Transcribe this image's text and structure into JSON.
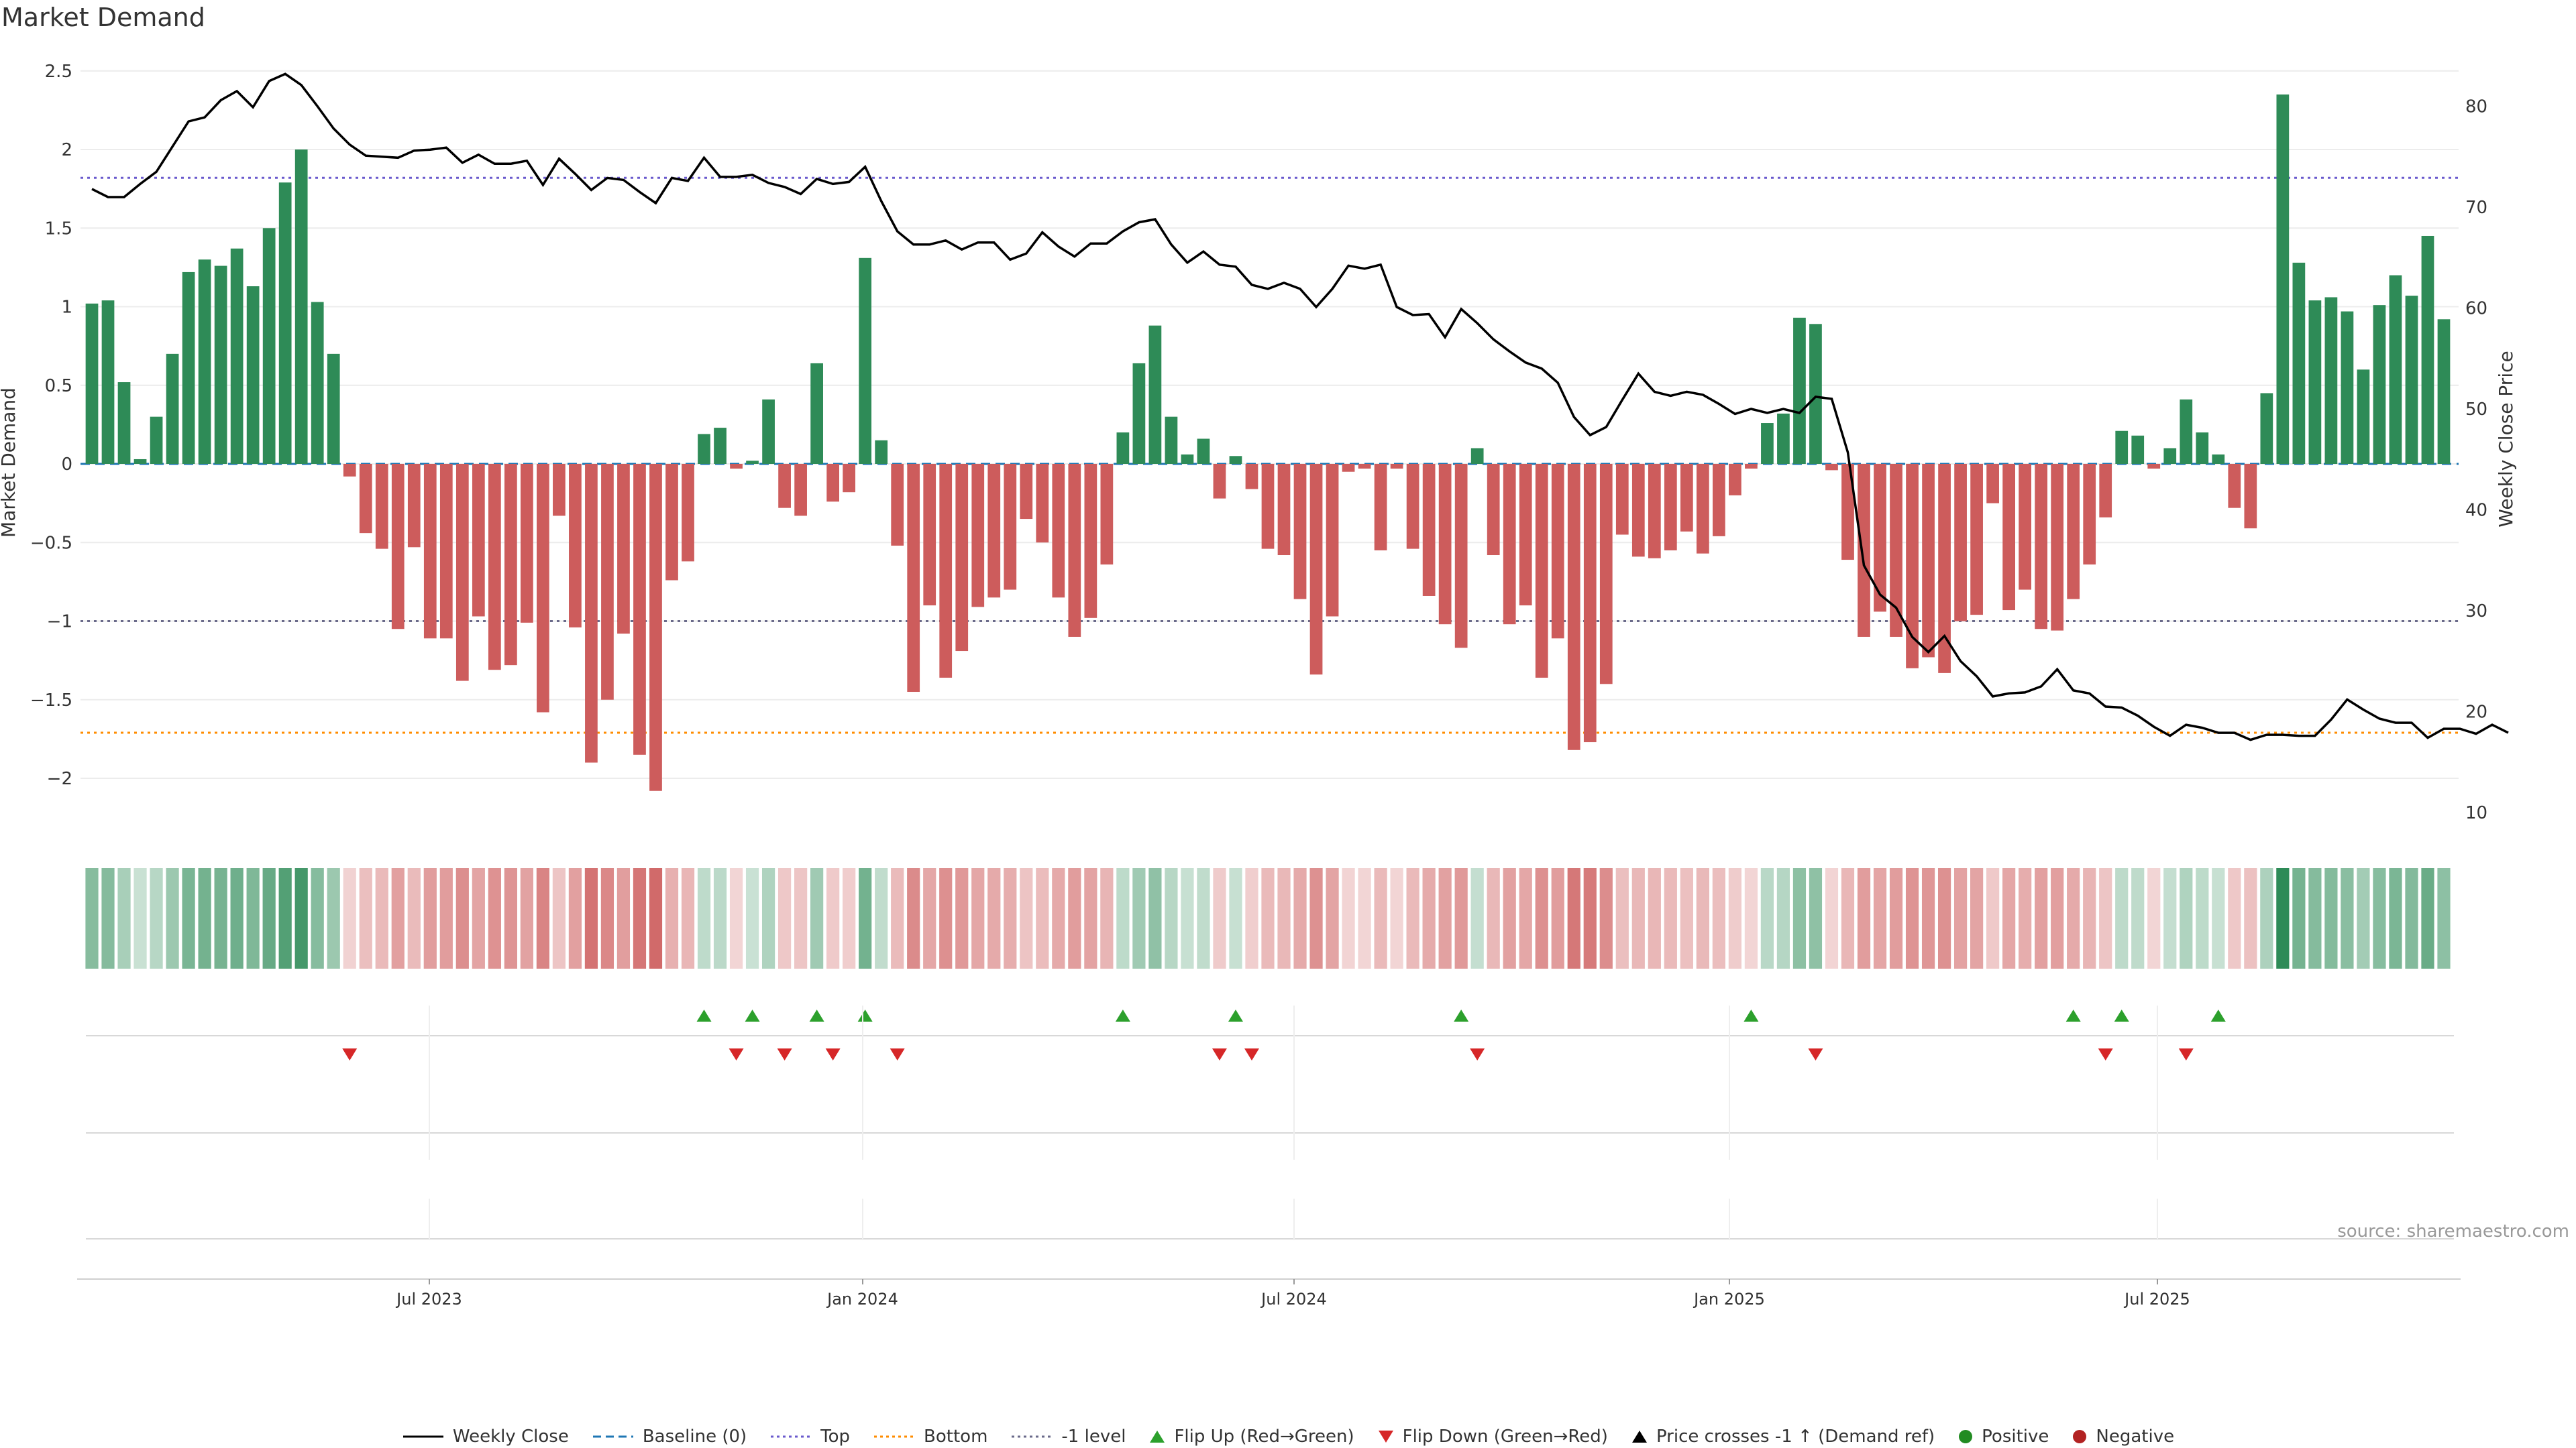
{
  "title": "Market Demand",
  "source": "source: sharemaestro.com",
  "colors": {
    "positive_bar": "#2e8b57",
    "negative_bar": "#cd5c5c",
    "price_line": "#000000",
    "top_line": "#6a5acd",
    "bottom_line": "#ff8c00",
    "minus1_line": "#6a6a8a",
    "baseline": "#1f77b4",
    "flip_up": "#2ca02c",
    "flip_down": "#d62728"
  },
  "legend": [
    {
      "label": "Weekly Close",
      "icon": "solid-line"
    },
    {
      "label": "Baseline (0)",
      "icon": "dashed-line"
    },
    {
      "label": "Top",
      "icon": "dotted-line"
    },
    {
      "label": "Bottom",
      "icon": "dotted-line"
    },
    {
      "label": "-1 level",
      "icon": "dotted-line"
    },
    {
      "label": "Flip Up (Red→Green)",
      "icon": "triangle-up-icon"
    },
    {
      "label": "Flip Down (Green→Red)",
      "icon": "triangle-down-icon"
    },
    {
      "label": "Price crosses -1 ↑ (Demand ref)",
      "icon": "triangle-up-icon"
    },
    {
      "label": "Positive",
      "icon": "circle-icon"
    },
    {
      "label": "Negative",
      "icon": "circle-icon"
    }
  ],
  "chart_data": {
    "type": "bar",
    "ylabel": "Market Demand",
    "y2label": "Weekly Close Price",
    "ylim": [
      -2.3,
      2.5
    ],
    "y2lim": [
      8.5,
      83.5
    ],
    "yticks": [
      "2.5",
      "2",
      "1.5",
      "1",
      "0.5",
      "0",
      "−0.5",
      "−1",
      "−1.5",
      "−2"
    ],
    "y2ticks": [
      "80",
      "70",
      "60",
      "50",
      "40",
      "30",
      "20",
      "10"
    ],
    "xticks": [
      "Jul 2023",
      "Jan 2024",
      "Jul 2024",
      "Jan 2025",
      "Jul 2025"
    ],
    "reference_lines": {
      "top": 1.82,
      "bottom": -1.71,
      "minus1": -1.0,
      "baseline": 0
    },
    "demand": [
      1.02,
      1.04,
      0.52,
      0.03,
      0.3,
      0.7,
      1.22,
      1.3,
      1.26,
      1.37,
      1.13,
      1.5,
      1.79,
      2.0,
      1.03,
      0.7,
      -0.08,
      -0.44,
      -0.54,
      -1.05,
      -0.53,
      -1.11,
      -1.11,
      -1.38,
      -0.97,
      -1.31,
      -1.28,
      -1.01,
      -1.58,
      -0.33,
      -1.04,
      -1.9,
      -1.5,
      -1.08,
      -1.85,
      -2.08,
      -0.74,
      -0.62,
      0.19,
      0.23,
      -0.03,
      0.02,
      0.41,
      -0.28,
      -0.33,
      0.64,
      -0.24,
      -0.18,
      1.31,
      0.15,
      -0.52,
      -1.45,
      -0.9,
      -1.36,
      -1.19,
      -0.91,
      -0.85,
      -0.8,
      -0.35,
      -0.5,
      -0.85,
      -1.1,
      -0.98,
      -0.64,
      0.2,
      0.64,
      0.88,
      0.3,
      0.06,
      0.16,
      -0.22,
      0.05,
      -0.16,
      -0.54,
      -0.58,
      -0.86,
      -1.34,
      -0.97,
      -0.05,
      -0.03,
      -0.55,
      -0.03,
      -0.54,
      -0.84,
      -1.02,
      -1.17,
      0.1,
      -0.58,
      -1.02,
      -0.9,
      -1.36,
      -1.11,
      -1.82,
      -1.77,
      -1.4,
      -0.45,
      -0.59,
      -0.6,
      -0.55,
      -0.43,
      -0.57,
      -0.46,
      -0.2,
      -0.03,
      0.26,
      0.32,
      0.93,
      0.89,
      -0.04,
      -0.61,
      -1.1,
      -0.94,
      -1.1,
      -1.3,
      -1.23,
      -1.33,
      -1.0,
      -0.96,
      -0.25,
      -0.93,
      -0.8,
      -1.05,
      -1.06,
      -0.86,
      -0.64,
      -0.34,
      0.21,
      0.18,
      -0.03,
      0.1,
      0.41,
      0.2,
      0.06,
      -0.28,
      -0.41,
      0.45,
      2.35,
      1.28,
      1.04,
      1.06,
      0.97,
      0.6,
      1.01,
      1.2,
      1.07,
      1.45,
      0.92
    ],
    "weekly_close": [
      71.8,
      71.0,
      71.0,
      72.3,
      73.5,
      76.0,
      78.5,
      78.9,
      80.6,
      81.5,
      79.9,
      82.5,
      83.2,
      82.1,
      80.0,
      77.8,
      76.2,
      75.1,
      75.0,
      74.9,
      75.6,
      75.7,
      75.9,
      74.4,
      75.2,
      74.3,
      74.3,
      74.6,
      72.2,
      74.8,
      73.3,
      71.7,
      72.9,
      72.7,
      71.5,
      70.4,
      72.9,
      72.6,
      74.9,
      73.0,
      73.0,
      73.2,
      72.4,
      72.0,
      71.3,
      72.8,
      72.3,
      72.5,
      74.0,
      70.6,
      67.6,
      66.3,
      66.3,
      66.7,
      65.8,
      66.5,
      66.5,
      64.8,
      65.4,
      67.5,
      66.1,
      65.1,
      66.4,
      66.4,
      67.6,
      68.5,
      68.8,
      66.3,
      64.5,
      65.6,
      64.3,
      64.1,
      62.3,
      61.9,
      62.5,
      61.9,
      60.1,
      61.9,
      64.2,
      63.9,
      64.3,
      60.1,
      59.3,
      59.4,
      57.1,
      59.9,
      58.5,
      56.9,
      55.7,
      54.6,
      54.0,
      52.6,
      49.2,
      47.4,
      48.2,
      50.9,
      53.5,
      51.7,
      51.3,
      51.7,
      51.4,
      50.5,
      49.5,
      50.0,
      49.6,
      50.0,
      49.6,
      51.2,
      51.0,
      45.7,
      34.5,
      31.6,
      30.3,
      27.4,
      25.9,
      27.5,
      25.0,
      23.5,
      21.5,
      21.8,
      21.9,
      22.5,
      24.2,
      22.1,
      21.8,
      20.5,
      20.4,
      19.6,
      18.5,
      17.6,
      18.7,
      18.4,
      17.9,
      17.9,
      17.2,
      17.7,
      17.7,
      17.6,
      17.6,
      19.2,
      21.2,
      20.2,
      19.3,
      18.9,
      18.9,
      17.4,
      18.3,
      18.3,
      17.8,
      18.7,
      17.9
    ],
    "heatmap": {
      "label": "demand intensity by week",
      "values_ref": "demand"
    },
    "flip_up_weeks": [
      38,
      41,
      45,
      48,
      64,
      71,
      85,
      103,
      123,
      126,
      132
    ],
    "flip_down_weeks": [
      16,
      40,
      43,
      46,
      50,
      70,
      72,
      86,
      107,
      125,
      130
    ]
  }
}
